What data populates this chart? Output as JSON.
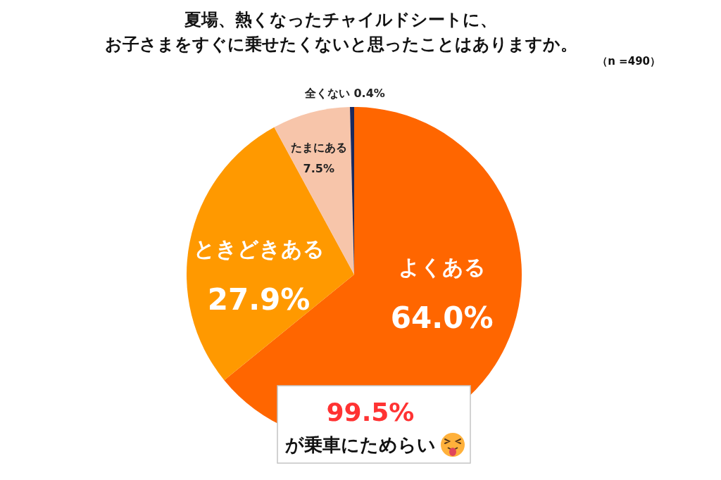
{
  "chart_data": {
    "type": "pie",
    "title": "夏場、熱くなったチャイルドシートに、",
    "subtitle": "お子さまをすぐに乗せたくないと思ったことはありますか。",
    "categories": [
      "よくある",
      "ときどきある",
      "たまにある",
      "全くない"
    ],
    "values": [
      64.0,
      27.9,
      7.5,
      0.4
    ],
    "value_labels": [
      "64.0%",
      "27.9%",
      "7.5%",
      "0.4%"
    ],
    "colors": [
      "#ff6600",
      "#ff9900",
      "#f7c5aa",
      "#1b2a5e"
    ],
    "annotations": [
      "（n =490）",
      "99.5%",
      "が乗車にためらい"
    ]
  }
}
